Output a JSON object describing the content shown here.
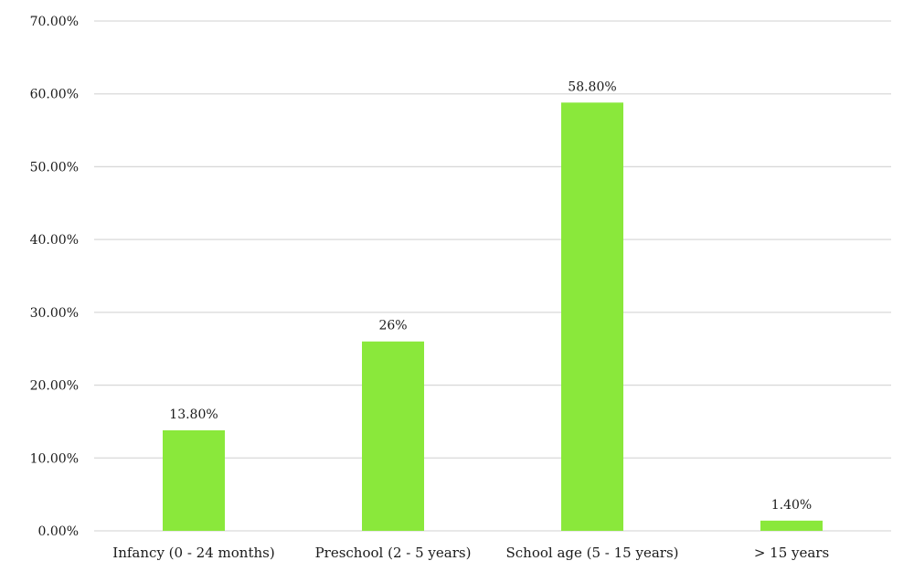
{
  "chart_data": {
    "type": "bar",
    "categories": [
      "Infancy (0 - 24 months)",
      "Preschool (2 - 5 years)",
      "School age (5 - 15 years)",
      "> 15 years"
    ],
    "values": [
      13.8,
      26,
      58.8,
      1.4
    ],
    "data_labels": [
      "13.80%",
      "26%",
      "58.80%",
      "1.40%"
    ],
    "y_ticks": [
      0,
      10,
      20,
      30,
      40,
      50,
      60,
      70
    ],
    "y_tick_labels": [
      "0.00%",
      "10.00%",
      "20.00%",
      "30.00%",
      "40.00%",
      "50.00%",
      "60.00%",
      "70.00%"
    ],
    "ylim": [
      0,
      70
    ],
    "title": "",
    "xlabel": "",
    "ylabel": "",
    "grid": true,
    "legend": "none",
    "bar_color": "#8ae83b",
    "grid_color": "#d9d9d9"
  }
}
